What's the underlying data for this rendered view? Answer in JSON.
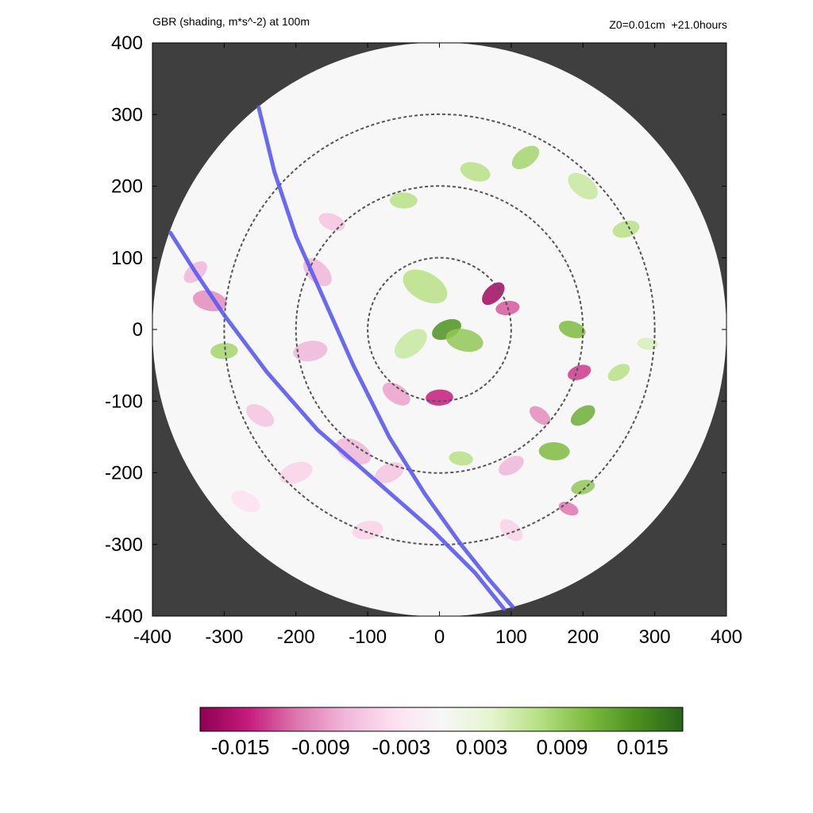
{
  "header": {
    "title_left": "GBR (shading, m*s^-2) at 100m",
    "title_right": "Z0=0.01cm  +21.0hours"
  },
  "chart_data": {
    "type": "heatmap",
    "title": "GBR (shading, m*s^-2) at 100m",
    "subtitle": "Z0=0.01cm  +21.0hours",
    "xlim": [
      -400,
      400
    ],
    "ylim": [
      -400,
      400
    ],
    "xticks": [
      "-400",
      "-300",
      "-200",
      "-100",
      "0",
      "100",
      "200",
      "300",
      "400"
    ],
    "yticks": [
      "400",
      "300",
      "200",
      "100",
      "0",
      "-100",
      "-200",
      "-300",
      "-400"
    ],
    "domain_radius": 400,
    "outside_color": "#3f3f3f",
    "range_rings": [
      100,
      200,
      300
    ],
    "colorbar": {
      "min": -0.015,
      "max": 0.015,
      "tick_labels": [
        "-0.015",
        "-0.009",
        "-0.003",
        "0.003",
        "0.009",
        "0.015"
      ],
      "colors": [
        "#8e0152",
        "#c51b7d",
        "#de77ae",
        "#f1b6da",
        "#fde0ef",
        "#f7f7f7",
        "#e6f5d0",
        "#b8e186",
        "#7fbc41",
        "#4d9221",
        "#276419"
      ]
    },
    "tracks": [
      {
        "color": "#5a5af0",
        "points": [
          [
            -252,
            310
          ],
          [
            -230,
            220
          ],
          [
            -200,
            130
          ],
          [
            -160,
            40
          ],
          [
            -120,
            -50
          ],
          [
            -70,
            -150
          ],
          [
            -20,
            -230
          ],
          [
            30,
            -300
          ],
          [
            70,
            -350
          ],
          [
            102,
            -387
          ]
        ]
      },
      {
        "color": "#5a5af0",
        "points": [
          [
            -375,
            135
          ],
          [
            -340,
            80
          ],
          [
            -300,
            20
          ],
          [
            -240,
            -60
          ],
          [
            -170,
            -140
          ],
          [
            -90,
            -210
          ],
          [
            -10,
            -280
          ],
          [
            50,
            -340
          ],
          [
            90,
            -390
          ]
        ]
      }
    ],
    "features": [
      {
        "x": 75,
        "y": 50,
        "r": 16,
        "value": -0.014
      },
      {
        "x": 95,
        "y": 30,
        "r": 14,
        "value": -0.01
      },
      {
        "x": -20,
        "y": 60,
        "r": 28,
        "value": 0.006
      },
      {
        "x": 10,
        "y": 0,
        "r": 18,
        "value": 0.012
      },
      {
        "x": 35,
        "y": -15,
        "r": 22,
        "value": 0.008
      },
      {
        "x": -40,
        "y": -20,
        "r": 22,
        "value": 0.005
      },
      {
        "x": 0,
        "y": -95,
        "r": 16,
        "value": -0.012
      },
      {
        "x": -60,
        "y": -90,
        "r": 18,
        "value": -0.007
      },
      {
        "x": 195,
        "y": -60,
        "r": 14,
        "value": -0.011
      },
      {
        "x": 185,
        "y": 0,
        "r": 16,
        "value": 0.009
      },
      {
        "x": 200,
        "y": -120,
        "r": 16,
        "value": 0.01
      },
      {
        "x": 160,
        "y": -170,
        "r": 18,
        "value": 0.009
      },
      {
        "x": 140,
        "y": -120,
        "r": 14,
        "value": -0.008
      },
      {
        "x": 200,
        "y": -220,
        "r": 14,
        "value": 0.008
      },
      {
        "x": 180,
        "y": -250,
        "r": 12,
        "value": -0.009
      },
      {
        "x": 100,
        "y": -190,
        "r": 16,
        "value": -0.006
      },
      {
        "x": 30,
        "y": -180,
        "r": 14,
        "value": 0.006
      },
      {
        "x": -170,
        "y": 80,
        "r": 20,
        "value": -0.006
      },
      {
        "x": -180,
        "y": -30,
        "r": 20,
        "value": -0.006
      },
      {
        "x": -120,
        "y": -170,
        "r": 22,
        "value": -0.006
      },
      {
        "x": -70,
        "y": -200,
        "r": 18,
        "value": -0.005
      },
      {
        "x": -320,
        "y": 40,
        "r": 20,
        "value": -0.008
      },
      {
        "x": -340,
        "y": 80,
        "r": 16,
        "value": -0.006
      },
      {
        "x": -300,
        "y": -30,
        "r": 16,
        "value": 0.007
      },
      {
        "x": -250,
        "y": -120,
        "r": 18,
        "value": -0.005
      },
      {
        "x": -200,
        "y": -200,
        "r": 20,
        "value": -0.004
      },
      {
        "x": 50,
        "y": 220,
        "r": 18,
        "value": 0.006
      },
      {
        "x": 120,
        "y": 240,
        "r": 18,
        "value": 0.007
      },
      {
        "x": -50,
        "y": 180,
        "r": 16,
        "value": 0.006
      },
      {
        "x": 200,
        "y": 200,
        "r": 20,
        "value": 0.005
      },
      {
        "x": 260,
        "y": 140,
        "r": 16,
        "value": 0.006
      },
      {
        "x": -150,
        "y": 150,
        "r": 16,
        "value": -0.005
      },
      {
        "x": 250,
        "y": -60,
        "r": 14,
        "value": 0.006
      },
      {
        "x": 290,
        "y": -20,
        "r": 12,
        "value": 0.004
      },
      {
        "x": 100,
        "y": -280,
        "r": 16,
        "value": -0.004
      },
      {
        "x": -100,
        "y": -280,
        "r": 18,
        "value": -0.004
      },
      {
        "x": -270,
        "y": -240,
        "r": 18,
        "value": -0.003
      }
    ]
  }
}
